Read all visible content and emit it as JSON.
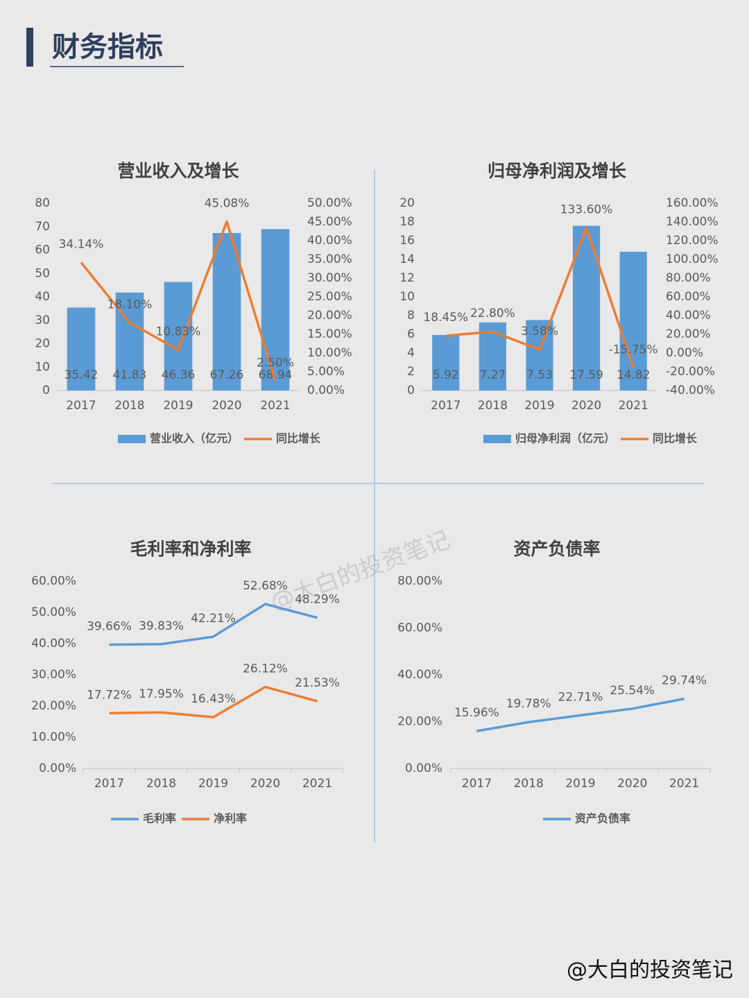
{
  "header": {
    "title": "财务指标"
  },
  "watermark": "@大白的投资笔记",
  "footer": "@大白的投资笔记",
  "chart_data": [
    {
      "type": "combo",
      "title": "营业收入及增长",
      "categories": [
        "2017",
        "2018",
        "2019",
        "2020",
        "2021"
      ],
      "ylim": [
        0,
        80
      ],
      "yticks": [
        0,
        10,
        20,
        30,
        40,
        50,
        60,
        70,
        80
      ],
      "y2lim": [
        0,
        50
      ],
      "y2ticks": [
        {
          "value": 0,
          "label": "0.00%"
        },
        {
          "value": 5,
          "label": "5.00%"
        },
        {
          "value": 10,
          "label": "10.00%"
        },
        {
          "value": 15,
          "label": "15.00%"
        },
        {
          "value": 20,
          "label": "20.00%"
        },
        {
          "value": 25,
          "label": "25.00%"
        },
        {
          "value": 30,
          "label": "30.00%"
        },
        {
          "value": 35,
          "label": "35.00%"
        },
        {
          "value": 40,
          "label": "40.00%"
        },
        {
          "value": 45,
          "label": "45.00%"
        },
        {
          "value": 50,
          "label": "50.00%"
        }
      ],
      "series": [
        {
          "name": "营业收入（亿元）",
          "type": "bar",
          "color": "#5b9bd5",
          "values": [
            35.42,
            41.83,
            46.36,
            67.26,
            68.94
          ]
        },
        {
          "name": "同比增长",
          "type": "line",
          "axis": "y2",
          "color": "#ed7d31",
          "values": [
            34.14,
            18.1,
            10.83,
            45.08,
            2.5
          ],
          "value_labels": [
            "34.14%",
            "18.10%",
            "10.83%",
            "45.08%",
            "2.50%"
          ]
        }
      ]
    },
    {
      "type": "combo",
      "title": "归母净利润及增长",
      "categories": [
        "2017",
        "2018",
        "2019",
        "2020",
        "2021"
      ],
      "ylim": [
        0,
        20
      ],
      "yticks": [
        0,
        2,
        4,
        6,
        8,
        10,
        12,
        14,
        16,
        18,
        20
      ],
      "y2lim": [
        -40,
        160
      ],
      "y2ticks": [
        {
          "value": -40,
          "label": "-40.00%"
        },
        {
          "value": -20,
          "label": "-20.00%"
        },
        {
          "value": 0,
          "label": "0.00%"
        },
        {
          "value": 20,
          "label": "20.00%"
        },
        {
          "value": 40,
          "label": "40.00%"
        },
        {
          "value": 60,
          "label": "60.00%"
        },
        {
          "value": 80,
          "label": "80.00%"
        },
        {
          "value": 100,
          "label": "100.00%"
        },
        {
          "value": 120,
          "label": "120.00%"
        },
        {
          "value": 140,
          "label": "140.00%"
        },
        {
          "value": 160,
          "label": "160.00%"
        }
      ],
      "series": [
        {
          "name": "归母净利润（亿元）",
          "type": "bar",
          "color": "#5b9bd5",
          "values": [
            5.92,
            7.27,
            7.53,
            17.59,
            14.82
          ]
        },
        {
          "name": "同比增长",
          "type": "line",
          "axis": "y2",
          "color": "#ed7d31",
          "values": [
            18.45,
            22.8,
            3.58,
            133.6,
            -15.75
          ],
          "value_labels": [
            "18.45%",
            "22.80%",
            "3.58%",
            "133.60%",
            "-15.75%"
          ]
        }
      ]
    },
    {
      "type": "line",
      "title": "毛利率和净利率",
      "categories": [
        "2017",
        "2018",
        "2019",
        "2020",
        "2021"
      ],
      "ylim": [
        0,
        60
      ],
      "yticks": [
        {
          "value": 0,
          "label": "0.00%"
        },
        {
          "value": 10,
          "label": "10.00%"
        },
        {
          "value": 20,
          "label": "20.00%"
        },
        {
          "value": 30,
          "label": "30.00%"
        },
        {
          "value": 40,
          "label": "40.00%"
        },
        {
          "value": 50,
          "label": "50.00%"
        },
        {
          "value": 60,
          "label": "60.00%"
        }
      ],
      "series": [
        {
          "name": "毛利率",
          "color": "#5b9bd5",
          "values": [
            39.66,
            39.83,
            42.21,
            52.68,
            48.29
          ],
          "value_labels": [
            "39.66%",
            "39.83%",
            "42.21%",
            "52.68%",
            "48.29%"
          ]
        },
        {
          "name": "净利率",
          "color": "#ed7d31",
          "values": [
            17.72,
            17.95,
            16.43,
            26.12,
            21.53
          ],
          "value_labels": [
            "17.72%",
            "17.95%",
            "16.43%",
            "26.12%",
            "21.53%"
          ]
        }
      ]
    },
    {
      "type": "line",
      "title": "资产负债率",
      "categories": [
        "2017",
        "2018",
        "2019",
        "2020",
        "2021"
      ],
      "ylim": [
        0,
        80
      ],
      "yticks": [
        {
          "value": 0,
          "label": "0.00%"
        },
        {
          "value": 20,
          "label": "20.00%"
        },
        {
          "value": 40,
          "label": "40.00%"
        },
        {
          "value": 60,
          "label": "60.00%"
        },
        {
          "value": 80,
          "label": "80.00%"
        }
      ],
      "series": [
        {
          "name": "资产负债率",
          "color": "#5b9bd5",
          "values": [
            15.96,
            19.78,
            22.71,
            25.54,
            29.74
          ],
          "value_labels": [
            "15.96%",
            "19.78%",
            "22.71%",
            "25.54%",
            "29.74%"
          ]
        }
      ]
    }
  ]
}
